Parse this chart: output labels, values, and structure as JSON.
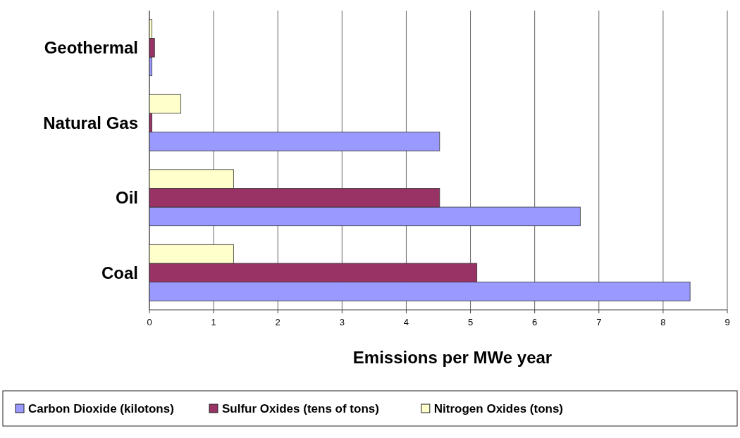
{
  "chart_data": {
    "type": "bar",
    "orientation": "horizontal",
    "xlabel": "Emissions per MWe year",
    "categories": [
      "Geothermal",
      "Natural Gas",
      "Oil",
      "Coal"
    ],
    "series": [
      {
        "name": "Carbon Dioxide (kilotons)",
        "color": "#9999ff",
        "values": [
          0.04,
          4.52,
          6.71,
          8.42
        ]
      },
      {
        "name": "Sulfur Oxides (tens of tons)",
        "color": "#993366",
        "values": [
          0.08,
          0.04,
          4.52,
          5.1
        ]
      },
      {
        "name": "Nitrogen Oxides (tons)",
        "color": "#ffffcc",
        "values": [
          0.04,
          0.49,
          1.31,
          1.31
        ]
      }
    ],
    "xlim": [
      0,
      9
    ],
    "xticks": [
      0,
      1,
      2,
      3,
      4,
      5,
      6,
      7,
      8,
      9
    ],
    "grid": "x",
    "legend": "bottom"
  }
}
